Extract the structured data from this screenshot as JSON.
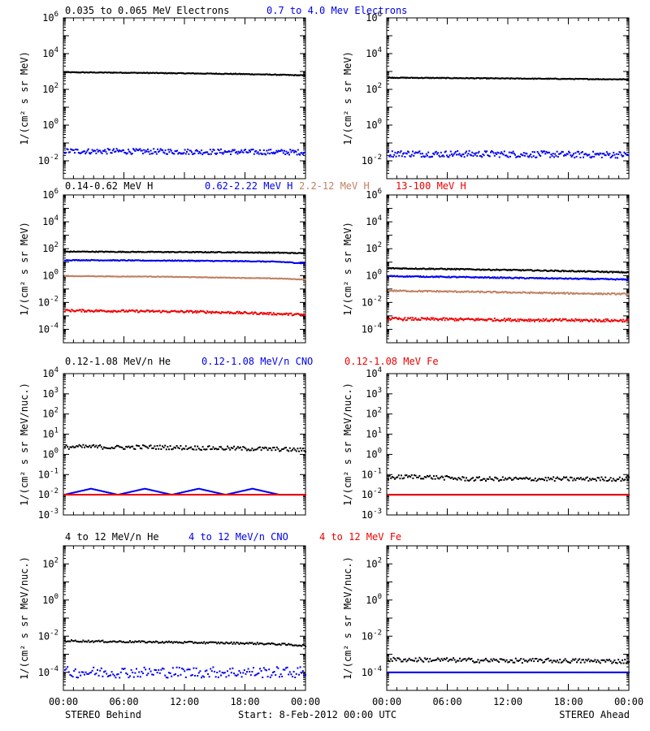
{
  "footer": {
    "left": "STEREO Behind",
    "center": "Start:  8-Feb-2012 00:00 UTC",
    "right": "STEREO Ahead"
  },
  "x_ticks": [
    "00:00",
    "06:00",
    "12:00",
    "18:00",
    "00:00"
  ],
  "colors": {
    "black": "#000000",
    "blue": "#0000ee",
    "tan": "#c08060",
    "red": "#ee0000"
  },
  "chart_data": [
    {
      "id": "electrons-behind",
      "type": "line",
      "scale": "log",
      "ylabel": "1/(cm² s sr MeV)",
      "ylim_exp": [
        -3,
        6
      ],
      "ytick_exp": [
        -2,
        0,
        2,
        4,
        6
      ],
      "series": [
        {
          "name": "0.035 to 0.065 MeV Electrons",
          "color": "#000000",
          "values": [
            900,
            880,
            860,
            830,
            800,
            770,
            740,
            700,
            650,
            600
          ],
          "scatter": 0.02
        },
        {
          "name": "0.7 to 4.0 Mev Electrons",
          "color": "#0000ee",
          "values": [
            0.035,
            0.034,
            0.034,
            0.033,
            0.033,
            0.032,
            0.032,
            0.031,
            0.031,
            0.03
          ],
          "scatter": 0.15
        }
      ]
    },
    {
      "id": "electrons-ahead",
      "type": "line",
      "scale": "log",
      "ylabel": "1/(cm² s sr MeV)",
      "ylim_exp": [
        -3,
        6
      ],
      "ytick_exp": [
        -2,
        0,
        2,
        4,
        6
      ],
      "series": [
        {
          "values": [
            450,
            440,
            430,
            420,
            410,
            400,
            390,
            380,
            370,
            360
          ],
          "color": "#000000",
          "scatter": 0.02
        },
        {
          "values": [
            0.025,
            0.025,
            0.024,
            0.024,
            0.024,
            0.023,
            0.023,
            0.022,
            0.022,
            0.022
          ],
          "color": "#0000ee",
          "scatter": 0.18
        }
      ]
    },
    {
      "id": "protons-behind",
      "type": "line",
      "scale": "log",
      "ylabel": "1/(cm² s sr MeV)",
      "ylim_exp": [
        -5,
        6
      ],
      "ytick_exp": [
        -4,
        -2,
        0,
        2,
        4,
        6
      ],
      "series": [
        {
          "name": "0.14-0.62 MeV H",
          "color": "#000000",
          "values": [
            60,
            60,
            58,
            57,
            56,
            55,
            54,
            52,
            50,
            45
          ],
          "scatter": 0.03
        },
        {
          "name": "0.62-2.22 MeV H",
          "color": "#0000ee",
          "values": [
            14,
            14,
            13.5,
            13,
            13,
            12.5,
            12,
            11.5,
            10.5,
            8
          ],
          "scatter": 0.03
        },
        {
          "name": "2.2-12 MeV H",
          "color": "#c08060",
          "values": [
            0.9,
            0.9,
            0.85,
            0.85,
            0.8,
            0.75,
            0.7,
            0.65,
            0.6,
            0.5
          ],
          "scatter": 0.02
        },
        {
          "name": "13-100 MeV H",
          "color": "#ee0000",
          "values": [
            0.0025,
            0.0024,
            0.0023,
            0.0022,
            0.0021,
            0.002,
            0.0018,
            0.0016,
            0.0014,
            0.0012
          ],
          "scatter": 0.08
        }
      ]
    },
    {
      "id": "protons-ahead",
      "type": "line",
      "scale": "log",
      "ylabel": "1/(cm² s sr MeV)",
      "ylim_exp": [
        -5,
        6
      ],
      "ytick_exp": [
        -4,
        -2,
        0,
        2,
        4,
        6
      ],
      "series": [
        {
          "values": [
            3.5,
            3.3,
            3.1,
            2.9,
            2.7,
            2.5,
            2.3,
            2.1,
            1.9,
            1.7
          ],
          "color": "#000000",
          "scatter": 0.04
        },
        {
          "values": [
            0.9,
            0.85,
            0.8,
            0.75,
            0.7,
            0.65,
            0.62,
            0.58,
            0.54,
            0.5
          ],
          "color": "#0000ee",
          "scatter": 0.04
        },
        {
          "values": [
            0.075,
            0.07,
            0.066,
            0.062,
            0.058,
            0.054,
            0.05,
            0.047,
            0.044,
            0.042
          ],
          "color": "#c08060",
          "scatter": 0.05
        },
        {
          "values": [
            0.0006,
            0.00058,
            0.00056,
            0.00054,
            0.00052,
            0.0005,
            0.00048,
            0.00047,
            0.00046,
            0.00045
          ],
          "color": "#ee0000",
          "scatter": 0.1
        }
      ]
    },
    {
      "id": "heavy-low-behind",
      "type": "scatter",
      "scale": "log",
      "ylabel": "1/(cm² s sr MeV/nuc.)",
      "ylim_exp": [
        -3,
        4
      ],
      "ytick_exp": [
        -3,
        -2,
        -1,
        0,
        1,
        2,
        3,
        4
      ],
      "series": [
        {
          "name": "0.12-1.08 MeV/n He",
          "color": "#000000",
          "values": [
            2.3,
            2.4,
            2.2,
            2.3,
            2.2,
            2.1,
            2.0,
            1.9,
            1.8,
            1.6
          ],
          "scatter": 0.1
        },
        {
          "name": "0.12-1.08 MeV/n CNO",
          "color": "#0000ee",
          "values": [
            0.01,
            0.02,
            0.01,
            0.02,
            0.01,
            0.02,
            0.01,
            0.02,
            0.01,
            0.01
          ],
          "scatter": 0
        },
        {
          "name": "0.12-1.08 MeV Fe",
          "color": "#ee0000",
          "values": [
            0.01,
            0.01,
            0.01,
            0.01,
            0.01,
            0.01,
            0.01,
            0.01,
            0.01,
            0.01
          ],
          "scatter": 0
        }
      ]
    },
    {
      "id": "heavy-low-ahead",
      "type": "scatter",
      "scale": "log",
      "ylabel": "1/(cm² s sr MeV/nuc.)",
      "ylim_exp": [
        -3,
        4
      ],
      "ytick_exp": [
        -3,
        -2,
        -1,
        0,
        1,
        2,
        3,
        4
      ],
      "series": [
        {
          "values": [
            0.07,
            0.08,
            0.07,
            0.06,
            0.06,
            0.06,
            0.06,
            0.06,
            0.06,
            0.06
          ],
          "color": "#000000",
          "scatter": 0.1
        },
        {
          "values": [
            0.01,
            0.01,
            0.01,
            0.01,
            0.01,
            0.01,
            0.01,
            0.01,
            0.01,
            0.01
          ],
          "color": "#0000ee",
          "scatter": 0
        },
        {
          "values": [
            0.01,
            0.01,
            0.01,
            0.01,
            0.01,
            0.01,
            0.01,
            0.01,
            0.01,
            0.01
          ],
          "color": "#ee0000",
          "scatter": 0
        }
      ]
    },
    {
      "id": "heavy-high-behind",
      "type": "scatter",
      "scale": "log",
      "ylabel": "1/(cm² s sr MeV/nuc.)",
      "ylim_exp": [
        -5,
        3
      ],
      "ytick_exp": [
        -4,
        -2,
        0,
        2
      ],
      "series": [
        {
          "name": "4 to 12 MeV/n He",
          "color": "#000000",
          "values": [
            0.0055,
            0.0052,
            0.005,
            0.0048,
            0.0046,
            0.0044,
            0.0042,
            0.004,
            0.0036,
            0.003
          ],
          "scatter": 0.05
        },
        {
          "name": "4 to 12 MeV/n CNO",
          "color": "#0000ee",
          "values": [
            0.0001,
            0.0001,
            0.0001,
            0.0001,
            0.0001,
            0.0001,
            0.0001,
            0.0001,
            0.0001,
            0.0001
          ],
          "scatter": 0.3
        },
        {
          "name": "4 to 12 MeV Fe",
          "color": "#ee0000",
          "values": [],
          "scatter": 0
        }
      ]
    },
    {
      "id": "heavy-high-ahead",
      "type": "scatter",
      "scale": "log",
      "ylabel": "1/(cm² s sr MeV/nuc.)",
      "ylim_exp": [
        -5,
        3
      ],
      "ytick_exp": [
        -4,
        -2,
        0,
        2
      ],
      "series": [
        {
          "values": [
            0.0005,
            0.0005,
            0.00048,
            0.00046,
            0.00045,
            0.00044,
            0.00044,
            0.00043,
            0.00042,
            0.0004
          ],
          "color": "#000000",
          "scatter": 0.12
        },
        {
          "values": [
            0.0001,
            0.0001,
            0.0001,
            0.0001,
            0.0001,
            0.0001,
            0.0001,
            0.0001,
            0.0001,
            0.0001
          ],
          "color": "#0000ee",
          "scatter": 0
        }
      ]
    }
  ],
  "legends": [
    [
      {
        "text": "0.035 to 0.065 MeV Electrons",
        "color": "#000000"
      },
      {
        "text": "0.7 to 4.0 Mev Electrons",
        "color": "#0000ee"
      }
    ],
    [
      {
        "text": "0.14-0.62 MeV H",
        "color": "#000000"
      },
      {
        "text": "0.62-2.22 MeV H",
        "color": "#0000ee"
      },
      {
        "text": "2.2-12 MeV H",
        "color": "#c08060"
      },
      {
        "text": "13-100 MeV H",
        "color": "#ee0000"
      }
    ],
    [
      {
        "text": "0.12-1.08 MeV/n He",
        "color": "#000000"
      },
      {
        "text": "0.12-1.08 MeV/n CNO",
        "color": "#0000ee"
      },
      {
        "text": "0.12-1.08 MeV Fe",
        "color": "#ee0000"
      }
    ],
    [
      {
        "text": "4 to 12 MeV/n He",
        "color": "#000000"
      },
      {
        "text": "4 to 12 MeV/n CNO",
        "color": "#0000ee"
      },
      {
        "text": "4 to 12 MeV Fe",
        "color": "#ee0000"
      }
    ]
  ]
}
